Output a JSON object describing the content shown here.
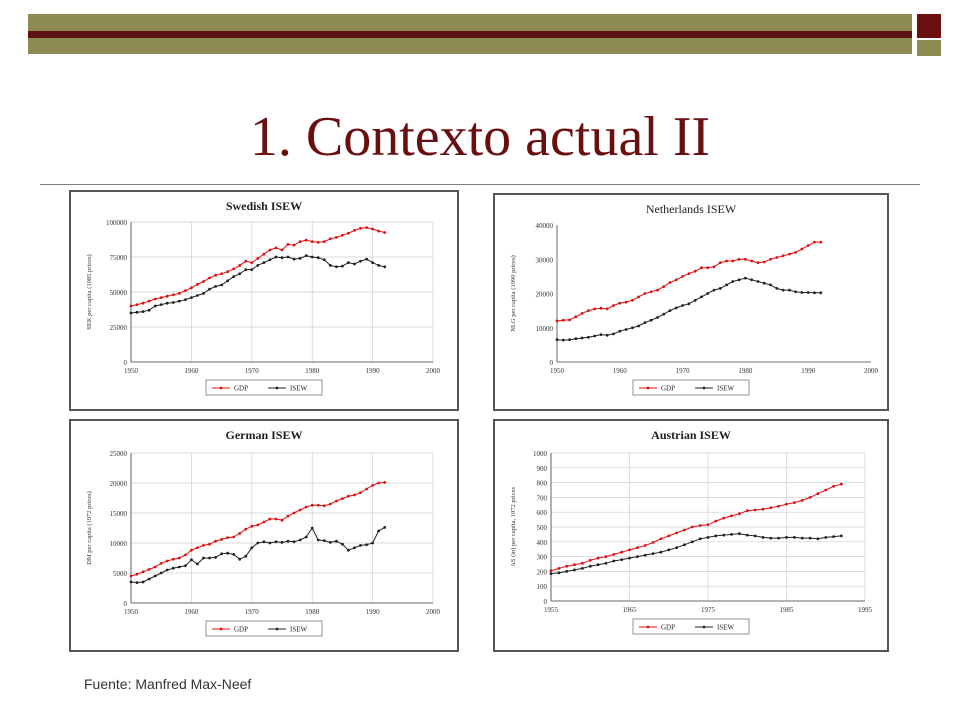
{
  "slide": {
    "title": "1. Contexto actual II",
    "source": "Fuente: Manfred Max-Neef"
  },
  "colors": {
    "gdp": "#e01010",
    "isew": "#222222",
    "title": "#6a0f0f"
  },
  "chart_data": [
    {
      "type": "line",
      "title": "Swedish ISEW",
      "xlabel": "",
      "ylabel": "SEK per capita (1985 prices)",
      "xlim": [
        1950,
        2000
      ],
      "ylim": [
        0,
        100000
      ],
      "x_ticks": [
        "1950",
        "1960",
        "1970",
        "1980",
        "1990",
        "2000"
      ],
      "y_ticks": [
        "0",
        "25000",
        "50000",
        "75000",
        "100000"
      ],
      "legend": "bottom",
      "grid": true,
      "series": [
        {
          "name": "GDP",
          "x": [
            1950,
            1951,
            1952,
            1953,
            1954,
            1955,
            1956,
            1957,
            1958,
            1959,
            1960,
            1961,
            1962,
            1963,
            1964,
            1965,
            1966,
            1967,
            1968,
            1969,
            1970,
            1971,
            1972,
            1973,
            1974,
            1975,
            1976,
            1977,
            1978,
            1979,
            1980,
            1981,
            1982,
            1983,
            1984,
            1985,
            1986,
            1987,
            1988,
            1989,
            1990,
            1991,
            1992
          ],
          "y": [
            40000,
            41000,
            42000,
            43500,
            45000,
            46000,
            47000,
            48000,
            49000,
            51000,
            53000,
            55500,
            57500,
            60000,
            62000,
            63000,
            64500,
            66500,
            69000,
            72000,
            71000,
            74000,
            77000,
            80000,
            81500,
            80000,
            84000,
            83500,
            86000,
            87000,
            86000,
            85500,
            86000,
            88000,
            89000,
            90500,
            92000,
            94000,
            95500,
            96000,
            95000,
            93500,
            92500
          ]
        },
        {
          "name": "ISEW",
          "x": [
            1950,
            1951,
            1952,
            1953,
            1954,
            1955,
            1956,
            1957,
            1958,
            1959,
            1960,
            1961,
            1962,
            1963,
            1964,
            1965,
            1966,
            1967,
            1968,
            1969,
            1970,
            1971,
            1972,
            1973,
            1974,
            1975,
            1976,
            1977,
            1978,
            1979,
            1980,
            1981,
            1982,
            1983,
            1984,
            1985,
            1986,
            1987,
            1988,
            1989,
            1990,
            1991,
            1992
          ],
          "y": [
            35000,
            35500,
            36000,
            37000,
            40000,
            41000,
            42000,
            42500,
            43500,
            44500,
            46000,
            47500,
            49000,
            52000,
            54000,
            55000,
            58000,
            61000,
            63000,
            66000,
            66000,
            69000,
            71000,
            73000,
            75000,
            74500,
            75000,
            73500,
            74000,
            76000,
            75000,
            74500,
            73000,
            69000,
            68000,
            68500,
            71000,
            70000,
            72000,
            73500,
            71000,
            69000,
            68000
          ]
        }
      ]
    },
    {
      "type": "line",
      "title": "Netherlands ISEW",
      "xlabel": "",
      "ylabel": "NLG per capita (1990 prices)",
      "xlim": [
        1950,
        2000
      ],
      "ylim": [
        0,
        40000
      ],
      "x_ticks": [
        "1950",
        "1960",
        "1970",
        "1980",
        "1990",
        "2000"
      ],
      "y_ticks": [
        "0",
        "10000",
        "20000",
        "30000",
        "40000"
      ],
      "legend": "bottom",
      "grid": false,
      "series": [
        {
          "name": "GDP",
          "x": [
            1950,
            1951,
            1952,
            1953,
            1954,
            1955,
            1956,
            1957,
            1958,
            1959,
            1960,
            1961,
            1962,
            1963,
            1964,
            1965,
            1966,
            1967,
            1968,
            1969,
            1970,
            1971,
            1972,
            1973,
            1974,
            1975,
            1976,
            1977,
            1978,
            1979,
            1980,
            1981,
            1982,
            1983,
            1984,
            1985,
            1986,
            1987,
            1988,
            1989,
            1990,
            1991,
            1992
          ],
          "y": [
            12000,
            12200,
            12300,
            13200,
            14200,
            15000,
            15500,
            15700,
            15500,
            16500,
            17200,
            17500,
            18000,
            19000,
            20000,
            20500,
            21000,
            22000,
            23200,
            24000,
            25000,
            25800,
            26500,
            27500,
            27500,
            27800,
            29000,
            29500,
            29500,
            30000,
            30000,
            29500,
            29000,
            29200,
            30000,
            30500,
            31000,
            31500,
            32000,
            33000,
            34000,
            35000,
            35000
          ]
        },
        {
          "name": "ISEW",
          "x": [
            1950,
            1951,
            1952,
            1953,
            1954,
            1955,
            1956,
            1957,
            1958,
            1959,
            1960,
            1961,
            1962,
            1963,
            1964,
            1965,
            1966,
            1967,
            1968,
            1969,
            1970,
            1971,
            1972,
            1973,
            1974,
            1975,
            1976,
            1977,
            1978,
            1979,
            1980,
            1981,
            1982,
            1983,
            1984,
            1985,
            1986,
            1987,
            1988,
            1989,
            1990,
            1991,
            1992
          ],
          "y": [
            6500,
            6400,
            6500,
            6800,
            7000,
            7200,
            7600,
            8000,
            7800,
            8200,
            9000,
            9500,
            10000,
            10500,
            11500,
            12200,
            13000,
            14000,
            15000,
            15800,
            16500,
            17000,
            18000,
            19000,
            20000,
            21000,
            21500,
            22500,
            23500,
            24000,
            24500,
            24000,
            23500,
            23000,
            22500,
            21500,
            21000,
            21000,
            20500,
            20300,
            20300,
            20200,
            20200
          ]
        }
      ]
    },
    {
      "type": "line",
      "title": "German ISEW",
      "xlabel": "",
      "ylabel": "DM per capita (1972 prices)",
      "xlim": [
        1950,
        2000
      ],
      "ylim": [
        0,
        25000
      ],
      "x_ticks": [
        "1950",
        "1960",
        "1970",
        "1980",
        "1990",
        "2000"
      ],
      "y_ticks": [
        "0",
        "5000",
        "10000",
        "15000",
        "20000",
        "25000"
      ],
      "legend": "bottom",
      "grid": true,
      "series": [
        {
          "name": "GDP",
          "x": [
            1950,
            1951,
            1952,
            1953,
            1954,
            1955,
            1956,
            1957,
            1958,
            1959,
            1960,
            1961,
            1962,
            1963,
            1964,
            1965,
            1966,
            1967,
            1968,
            1969,
            1970,
            1971,
            1972,
            1973,
            1974,
            1975,
            1976,
            1977,
            1978,
            1979,
            1980,
            1981,
            1982,
            1983,
            1984,
            1985,
            1986,
            1987,
            1988,
            1989,
            1990,
            1991,
            1992
          ],
          "y": [
            4500,
            4800,
            5200,
            5600,
            6000,
            6600,
            7000,
            7300,
            7500,
            8000,
            8800,
            9200,
            9600,
            9800,
            10300,
            10600,
            10900,
            11000,
            11600,
            12300,
            12800,
            13000,
            13500,
            14000,
            14000,
            13800,
            14500,
            15000,
            15500,
            16000,
            16300,
            16300,
            16200,
            16500,
            17000,
            17400,
            17800,
            18000,
            18400,
            19000,
            19600,
            20000,
            20100
          ]
        },
        {
          "name": "ISEW",
          "x": [
            1950,
            1951,
            1952,
            1953,
            1954,
            1955,
            1956,
            1957,
            1958,
            1959,
            1960,
            1961,
            1962,
            1963,
            1964,
            1965,
            1966,
            1967,
            1968,
            1969,
            1970,
            1971,
            1972,
            1973,
            1974,
            1975,
            1976,
            1977,
            1978,
            1979,
            1980,
            1981,
            1982,
            1983,
            1984,
            1985,
            1986,
            1987,
            1988,
            1989,
            1990,
            1991,
            1992
          ],
          "y": [
            3500,
            3400,
            3500,
            4000,
            4500,
            5000,
            5500,
            5800,
            6000,
            6200,
            7200,
            6500,
            7500,
            7500,
            7600,
            8200,
            8300,
            8100,
            7300,
            7800,
            9200,
            10000,
            10200,
            10000,
            10200,
            10100,
            10300,
            10200,
            10500,
            11000,
            12500,
            10500,
            10400,
            10100,
            10300,
            9800,
            8800,
            9200,
            9600,
            9700,
            10000,
            12000,
            12600
          ]
        }
      ]
    },
    {
      "type": "line",
      "title": "Austrian ISEW",
      "xlabel": "",
      "ylabel": "AS (in) per capita, 1972 prices",
      "xlim": [
        1955,
        1995
      ],
      "ylim": [
        0,
        1000
      ],
      "x_ticks": [
        "1955",
        "1965",
        "1975",
        "1985",
        "1995"
      ],
      "y_ticks": [
        "0",
        "100",
        "200",
        "300",
        "400",
        "500",
        "600",
        "700",
        "800",
        "900",
        "1000"
      ],
      "legend": "bottom",
      "grid": true,
      "series": [
        {
          "name": "GDP",
          "x": [
            1955,
            1956,
            1957,
            1958,
            1959,
            1960,
            1961,
            1962,
            1963,
            1964,
            1965,
            1966,
            1967,
            1968,
            1969,
            1970,
            1971,
            1972,
            1973,
            1974,
            1975,
            1976,
            1977,
            1978,
            1979,
            1980,
            1981,
            1982,
            1983,
            1984,
            1985,
            1986,
            1987,
            1988,
            1989,
            1990,
            1991,
            1992
          ],
          "y": [
            205,
            220,
            235,
            245,
            255,
            275,
            290,
            300,
            315,
            330,
            345,
            360,
            375,
            395,
            420,
            440,
            460,
            480,
            500,
            510,
            515,
            540,
            560,
            575,
            590,
            610,
            615,
            620,
            630,
            640,
            655,
            665,
            680,
            700,
            725,
            750,
            775,
            790
          ]
        },
        {
          "name": "ISEW",
          "x": [
            1955,
            1956,
            1957,
            1958,
            1959,
            1960,
            1961,
            1962,
            1963,
            1964,
            1965,
            1966,
            1967,
            1968,
            1969,
            1970,
            1971,
            1972,
            1973,
            1974,
            1975,
            1976,
            1977,
            1978,
            1979,
            1980,
            1981,
            1982,
            1983,
            1984,
            1985,
            1986,
            1987,
            1988,
            1989,
            1990,
            1991,
            1992
          ],
          "y": [
            185,
            190,
            200,
            210,
            220,
            235,
            245,
            255,
            270,
            280,
            290,
            300,
            310,
            320,
            330,
            345,
            360,
            380,
            400,
            420,
            430,
            440,
            445,
            450,
            455,
            445,
            440,
            430,
            425,
            425,
            430,
            430,
            425,
            425,
            420,
            430,
            435,
            440
          ]
        }
      ]
    }
  ]
}
